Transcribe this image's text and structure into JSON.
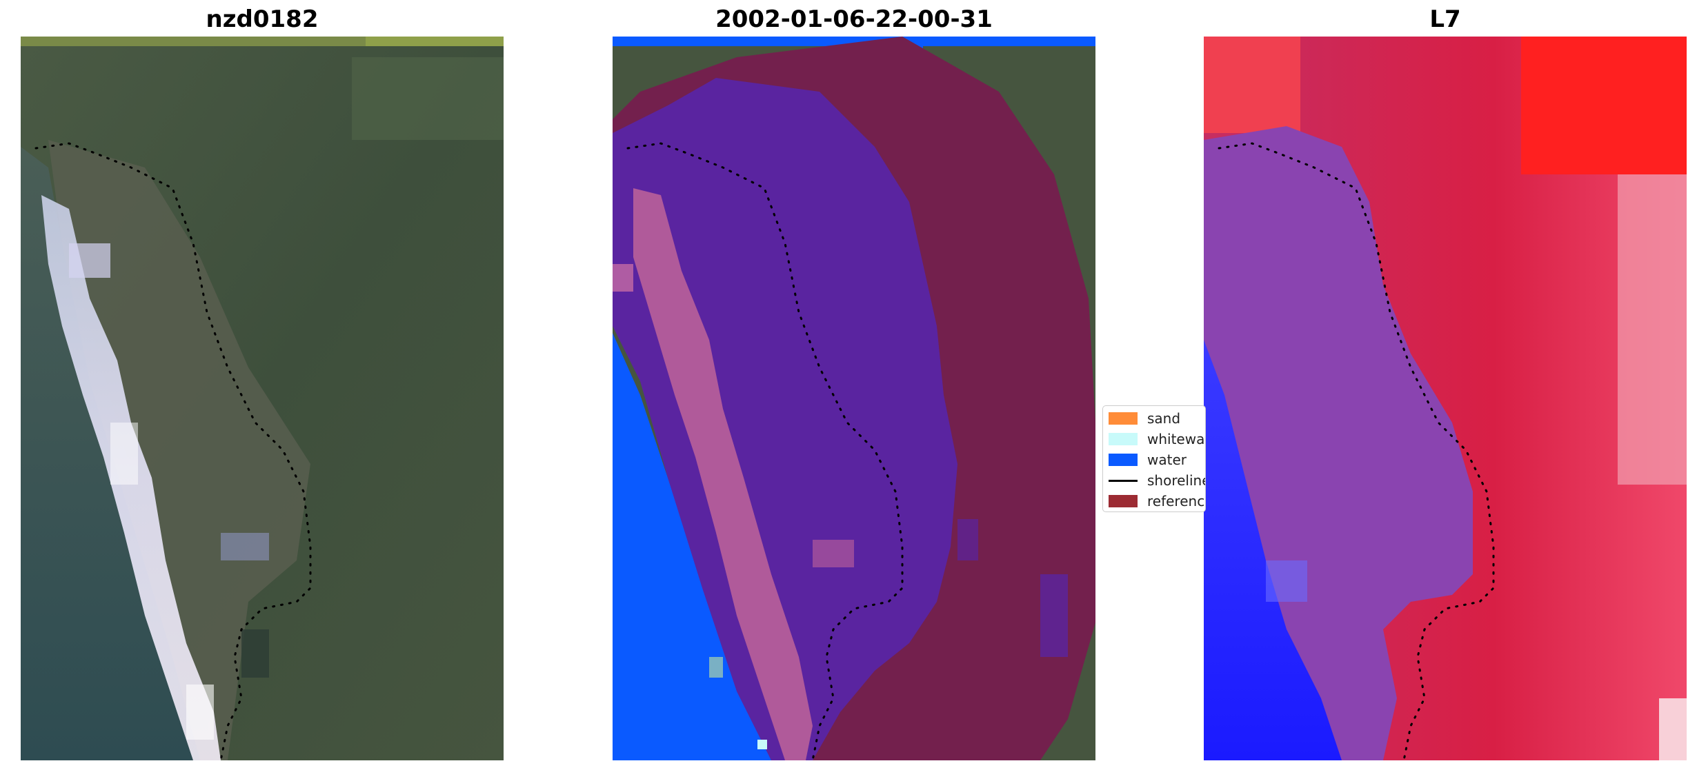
{
  "panels": [
    {
      "title": "nzd0182",
      "kind": "rgb"
    },
    {
      "title": "2002-01-06-22-00-31",
      "kind": "classified"
    },
    {
      "title": "L7",
      "kind": "index"
    }
  ],
  "legend": {
    "items": [
      {
        "label": "sand",
        "type": "patch",
        "color": "#ff8c38"
      },
      {
        "label": "whitewater",
        "type": "patch",
        "color": "#c8fafa"
      },
      {
        "label": "water",
        "type": "patch",
        "color": "#0a5aff"
      },
      {
        "label": "shoreline",
        "type": "line",
        "color": "#000000"
      },
      {
        "label": "reference",
        "type": "patch",
        "color": "#9c2b33"
      }
    ]
  },
  "colors": {
    "vegetation": "#3f5440",
    "water_rgb": "#3c5a58",
    "whitewater_rgb": "#d8d8f0",
    "classified_water": "#0a5aff",
    "classified_reference": "#7a1f48",
    "classified_purple": "#5a24a0",
    "index_red": "#d81f45",
    "index_blue": "#1a1aff"
  }
}
